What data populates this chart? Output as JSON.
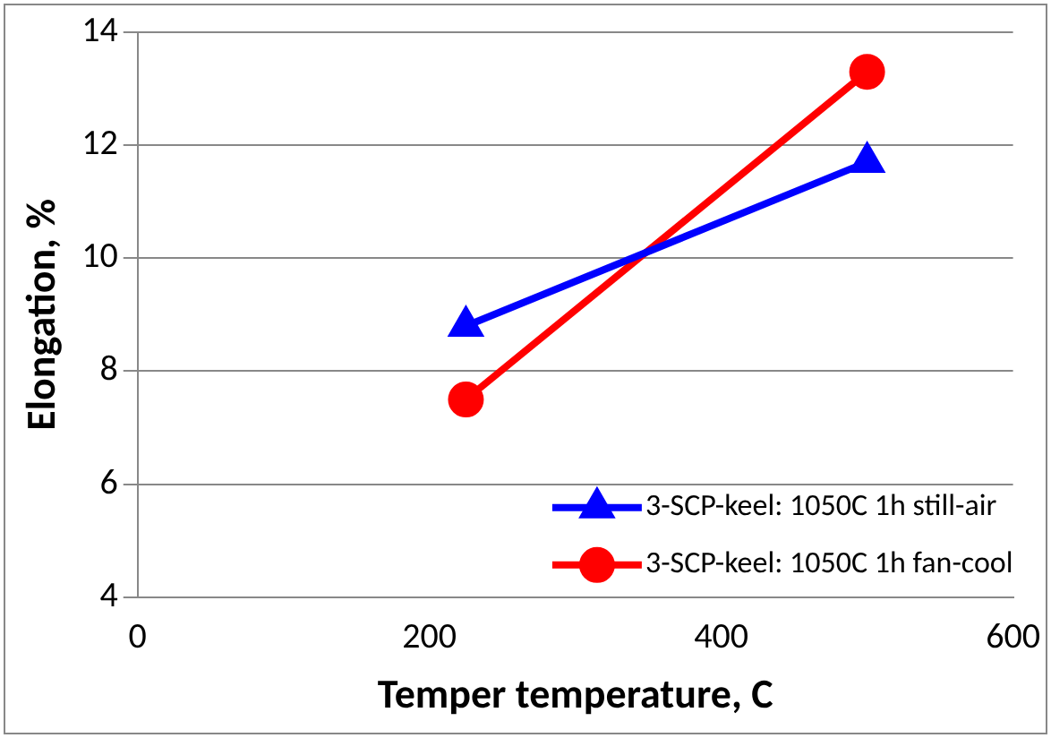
{
  "chart_data": {
    "type": "line",
    "xlabel": "Temper temperature, C",
    "ylabel": "Elongation, %",
    "xlim": [
      0,
      600
    ],
    "xticks": [
      0,
      200,
      400,
      600
    ],
    "ylim": [
      4,
      14
    ],
    "yticks": [
      4,
      6,
      8,
      10,
      12,
      14
    ],
    "grid": "y",
    "legend": "bottom right",
    "x": [
      225,
      500
    ],
    "series": [
      {
        "name": "3-SCP-keel: 1050C 1h still-air",
        "color": "#0000ff",
        "marker": "triangle",
        "values": [
          8.8,
          11.7
        ]
      },
      {
        "name": "3-SCP-keel: 1050C 1h fan-cool",
        "color": "#ff0000",
        "marker": "circle",
        "values": [
          7.5,
          13.3
        ]
      }
    ]
  }
}
